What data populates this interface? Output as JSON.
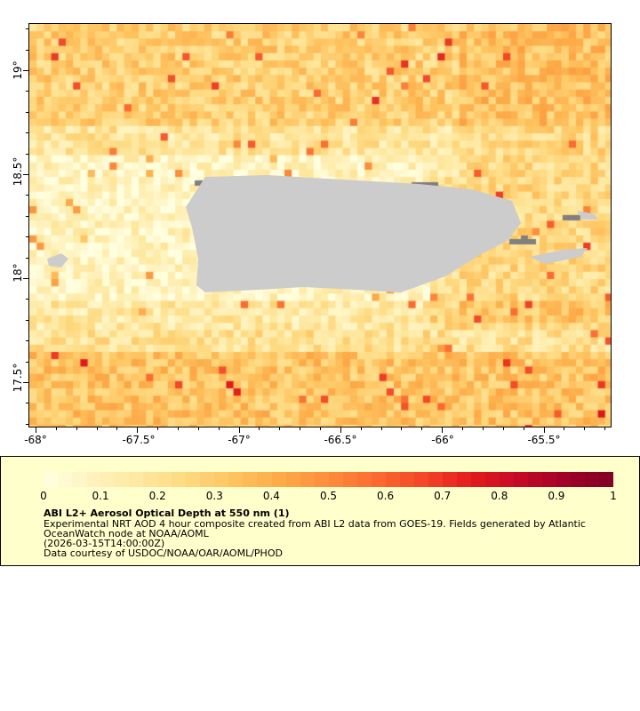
{
  "map": {
    "lon_ticks": [
      "-68°",
      "-67.5°",
      "-67°",
      "-66.5°",
      "-66°",
      "-65.5°"
    ],
    "lat_ticks": [
      "19°",
      "18.5°",
      "18°",
      "17.5°"
    ],
    "lon_range": [
      -68.035,
      -65.17
    ],
    "lat_range": [
      17.29,
      19.23
    ],
    "land_color": "#cccccc",
    "nodata_color": "#808080"
  },
  "colorbar": {
    "ticks": [
      "0",
      "0.1",
      "0.2",
      "0.3",
      "0.4",
      "0.5",
      "0.6",
      "0.7",
      "0.8",
      "0.9",
      "1"
    ],
    "range": [
      0,
      1
    ],
    "colors": [
      "#ffffe0",
      "#fff3c0",
      "#fee8a0",
      "#fed980",
      "#fec360",
      "#fdaa48",
      "#fd8d3c",
      "#fc6a30",
      "#f44628",
      "#e31a1c",
      "#c50a26",
      "#a00028",
      "#800026"
    ]
  },
  "legend": {
    "title": "ABI L2+ Aerosol Optical Depth at 550 nm (1)",
    "line1": "Experimental NRT AOD 4 hour composite created from ABI L2 data from GOES-19. Fields generated by Atlantic",
    "line2": "OceanWatch node at NOAA/AOML",
    "line3": "(2026-03-15T14:00:00Z)",
    "line4": "Data courtesy of USDOC/NOAA/OAR/AOML/PHOD"
  }
}
